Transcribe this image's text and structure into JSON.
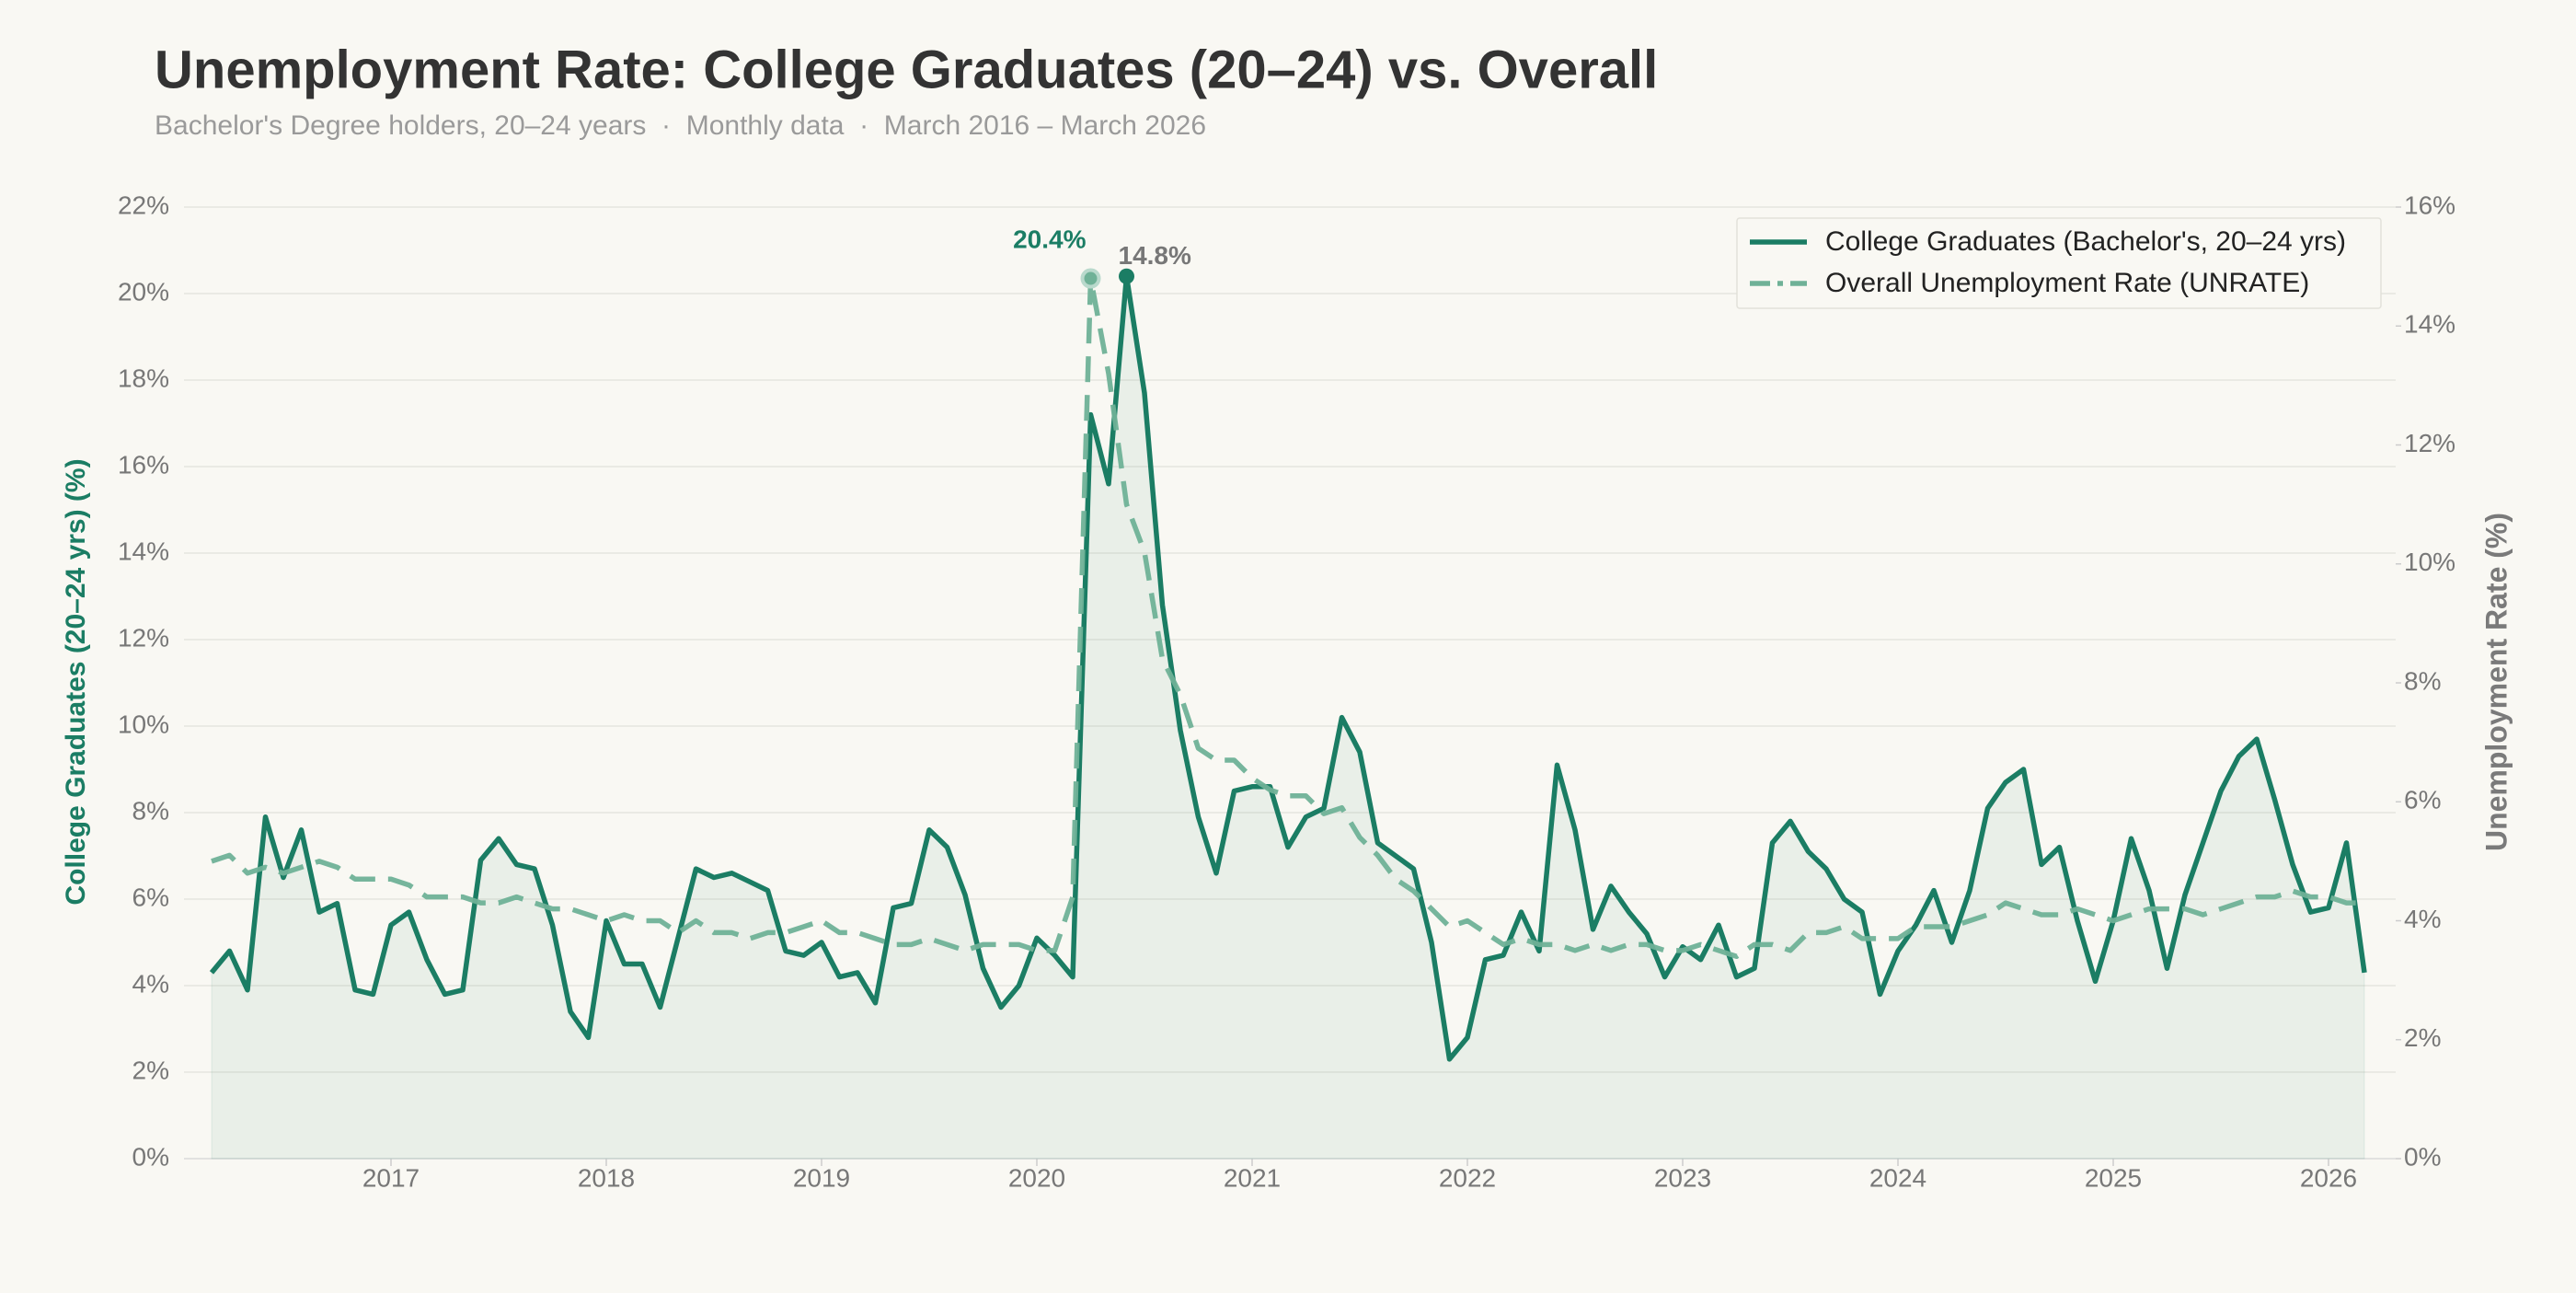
{
  "chart_data": {
    "type": "line",
    "title": "Unemployment Rate: College Graduates (20–24) vs. Overall",
    "subtitle": "Bachelor's Degree holders, 20–24 years  ·  Monthly data  ·  March 2016 – March 2026",
    "ylabel": "College Graduates (20–24 yrs) (%)",
    "y2label": "Unemployment Rate (%)",
    "x": [
      "2016-03",
      "2016-04",
      "2016-05",
      "2016-06",
      "2016-07",
      "2016-08",
      "2016-09",
      "2016-10",
      "2016-11",
      "2016-12",
      "2017-01",
      "2017-02",
      "2017-03",
      "2017-04",
      "2017-05",
      "2017-06",
      "2017-07",
      "2017-08",
      "2017-09",
      "2017-10",
      "2017-11",
      "2017-12",
      "2018-01",
      "2018-02",
      "2018-03",
      "2018-04",
      "2018-05",
      "2018-06",
      "2018-07",
      "2018-08",
      "2018-09",
      "2018-10",
      "2018-11",
      "2018-12",
      "2019-01",
      "2019-02",
      "2019-03",
      "2019-04",
      "2019-05",
      "2019-06",
      "2019-07",
      "2019-08",
      "2019-09",
      "2019-10",
      "2019-11",
      "2019-12",
      "2020-01",
      "2020-02",
      "2020-03",
      "2020-04",
      "2020-05",
      "2020-06",
      "2020-07",
      "2020-08",
      "2020-09",
      "2020-10",
      "2020-11",
      "2020-12",
      "2021-01",
      "2021-02",
      "2021-03",
      "2021-04",
      "2021-05",
      "2021-06",
      "2021-07",
      "2021-08",
      "2021-09",
      "2021-10",
      "2021-11",
      "2021-12",
      "2022-01",
      "2022-02",
      "2022-03",
      "2022-04",
      "2022-05",
      "2022-06",
      "2022-07",
      "2022-08",
      "2022-09",
      "2022-10",
      "2022-11",
      "2022-12",
      "2023-01",
      "2023-02",
      "2023-03",
      "2023-04",
      "2023-05",
      "2023-06",
      "2023-07",
      "2023-08",
      "2023-09",
      "2023-10",
      "2023-11",
      "2023-12",
      "2024-01",
      "2024-02",
      "2024-03",
      "2024-04",
      "2024-05",
      "2024-06",
      "2024-07",
      "2024-08",
      "2024-09",
      "2024-10",
      "2024-11",
      "2024-12",
      "2025-01",
      "2025-02",
      "2025-03",
      "2025-04",
      "2025-05",
      "2025-06",
      "2025-07",
      "2025-08",
      "2025-09",
      "2025-10",
      "2025-11",
      "2025-12",
      "2026-01",
      "2026-02",
      "2026-03"
    ],
    "series": [
      {
        "name": "College Graduates (Bachelor's, 20–24 yrs)",
        "color": "#1b7d64",
        "fill_area": true,
        "values": [
          4.3,
          4.8,
          3.9,
          7.9,
          6.5,
          7.6,
          5.7,
          5.9,
          3.9,
          3.8,
          5.4,
          5.7,
          4.6,
          3.8,
          3.9,
          6.9,
          7.4,
          6.8,
          6.7,
          5.4,
          3.4,
          2.8,
          5.5,
          4.5,
          4.5,
          3.5,
          5.1,
          6.7,
          6.5,
          6.6,
          6.4,
          6.2,
          4.8,
          4.7,
          5.0,
          4.2,
          4.3,
          3.6,
          5.8,
          5.9,
          7.6,
          7.2,
          6.1,
          4.4,
          3.5,
          4.0,
          5.1,
          4.7,
          4.2,
          17.2,
          15.6,
          20.4,
          17.7,
          12.8,
          9.9,
          7.9,
          6.6,
          8.5,
          8.6,
          8.6,
          7.2,
          7.9,
          8.1,
          10.2,
          9.4,
          7.3,
          7.0,
          6.7,
          5.0,
          2.3,
          2.8,
          4.6,
          4.7,
          5.7,
          4.8,
          9.1,
          7.6,
          5.3,
          6.3,
          5.7,
          5.2,
          4.2,
          4.9,
          4.6,
          5.4,
          4.2,
          4.4,
          7.3,
          7.8,
          7.1,
          6.7,
          6.0,
          5.7,
          3.8,
          4.8,
          5.4,
          6.2,
          5.0,
          6.2,
          8.1,
          8.7,
          9.0,
          6.8,
          7.2,
          5.5,
          4.1,
          5.5,
          7.4,
          6.2,
          4.4,
          6.1,
          7.3,
          8.5,
          9.3,
          9.7,
          8.3,
          6.8,
          5.7,
          5.8,
          7.3,
          4.3
        ]
      },
      {
        "name": "Overall Unemployment Rate (UNRATE)",
        "color": "#6fb197",
        "axis": "y2",
        "line_style": "dashed",
        "values": [
          5.0,
          5.1,
          4.8,
          4.9,
          4.8,
          4.9,
          5.0,
          4.9,
          4.7,
          4.7,
          4.7,
          4.6,
          4.4,
          4.4,
          4.4,
          4.3,
          4.3,
          4.4,
          4.3,
          4.2,
          4.2,
          4.1,
          4.0,
          4.1,
          4.0,
          4.0,
          3.8,
          4.0,
          3.8,
          3.8,
          3.7,
          3.8,
          3.8,
          3.9,
          4.0,
          3.8,
          3.8,
          3.7,
          3.6,
          3.6,
          3.7,
          3.6,
          3.5,
          3.6,
          3.6,
          3.6,
          3.5,
          3.5,
          4.4,
          14.8,
          13.2,
          11.0,
          10.2,
          8.4,
          7.8,
          6.9,
          6.7,
          6.7,
          6.4,
          6.2,
          6.1,
          6.1,
          5.8,
          5.9,
          5.4,
          5.1,
          4.7,
          4.5,
          4.2,
          3.9,
          4.0,
          3.8,
          3.6,
          3.7,
          3.6,
          3.6,
          3.5,
          3.6,
          3.5,
          3.6,
          3.6,
          3.5,
          3.5,
          3.6,
          3.5,
          3.4,
          3.6,
          3.6,
          3.5,
          3.8,
          3.8,
          3.9,
          3.7,
          3.7,
          3.7,
          3.9,
          3.9,
          3.9,
          4.0,
          4.1,
          4.3,
          4.2,
          4.1,
          4.1,
          4.2,
          4.1,
          4.0,
          4.1,
          4.2,
          4.2,
          4.2,
          4.1,
          4.2,
          4.3,
          4.4,
          4.4,
          4.5,
          4.4,
          4.4,
          4.3,
          4.3
        ]
      }
    ],
    "annotations": [
      {
        "text": "20.4%",
        "x": "2020-06",
        "y": 20.4,
        "series": 0
      },
      {
        "text": "14.8%",
        "x": "2020-04",
        "y": 14.8,
        "series": 1
      }
    ],
    "xlim": [
      "2016-03",
      "2026-03"
    ],
    "xticks": [
      "2017",
      "2018",
      "2019",
      "2020",
      "2021",
      "2022",
      "2023",
      "2024",
      "2025",
      "2026"
    ],
    "ylim": [
      0,
      22
    ],
    "yticks": [
      {
        "value": 0,
        "label": "0%"
      },
      {
        "value": 2,
        "label": "2%"
      },
      {
        "value": 4,
        "label": "4%"
      },
      {
        "value": 6,
        "label": "6%"
      },
      {
        "value": 8,
        "label": "8%"
      },
      {
        "value": 10,
        "label": "10%"
      },
      {
        "value": 12,
        "label": "12%"
      },
      {
        "value": 14,
        "label": "14%"
      },
      {
        "value": 16,
        "label": "16%"
      },
      {
        "value": 18,
        "label": "18%"
      },
      {
        "value": 20,
        "label": "20%"
      },
      {
        "value": 22,
        "label": "22%"
      }
    ],
    "y2lim": [
      0,
      16
    ],
    "y2ticks": [
      {
        "value": 0,
        "label": "0%"
      },
      {
        "value": 2,
        "label": "2%"
      },
      {
        "value": 4,
        "label": "4%"
      },
      {
        "value": 6,
        "label": "6%"
      },
      {
        "value": 8,
        "label": "8%"
      },
      {
        "value": 10,
        "label": "10%"
      },
      {
        "value": 12,
        "label": "12%"
      },
      {
        "value": 14,
        "label": "14%"
      },
      {
        "value": 16,
        "label": "16%"
      }
    ],
    "grid": true,
    "legend": "upper-right"
  }
}
